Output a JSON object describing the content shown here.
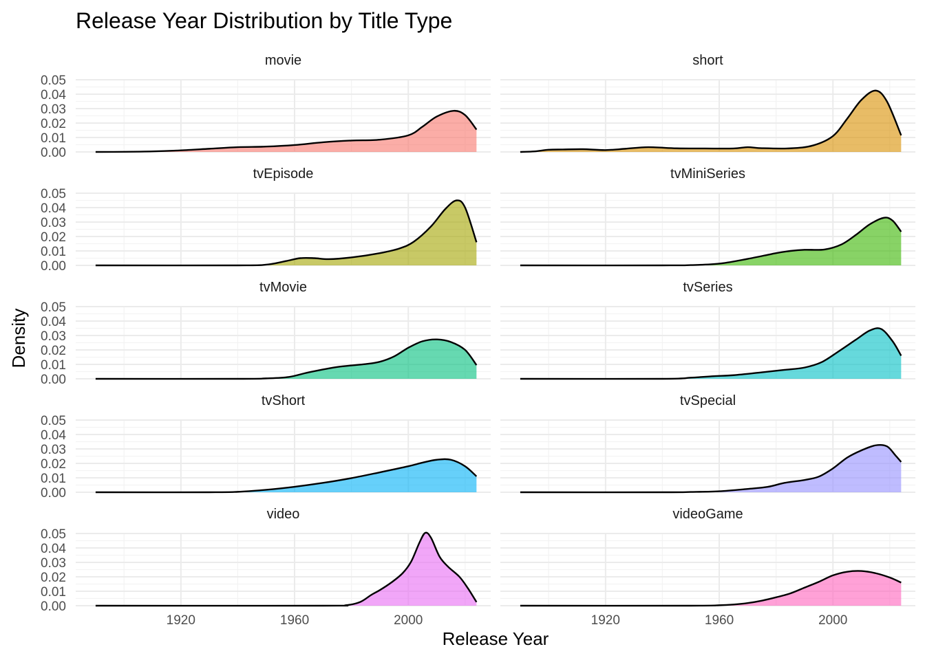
{
  "chart_data": {
    "type": "area",
    "title": "Release Year Distribution by Title Type",
    "xlabel": "Release Year",
    "ylabel": "Density",
    "xlim": [
      1883,
      2029
    ],
    "ylim": [
      0,
      0.05
    ],
    "x_ticks": [
      1920,
      1960,
      2000
    ],
    "y_ticks": [
      0.0,
      0.01,
      0.02,
      0.03,
      0.04,
      0.05
    ],
    "grid": true,
    "legend": "none",
    "facets": [
      {
        "name": "movie",
        "color": "#F8766D",
        "x": [
          1890,
          1900,
          1910,
          1920,
          1930,
          1940,
          1950,
          1960,
          1970,
          1980,
          1990,
          2000,
          2005,
          2010,
          2016,
          2020,
          2024
        ],
        "values": [
          0.0,
          0.0001,
          0.0004,
          0.0011,
          0.0022,
          0.0033,
          0.0037,
          0.0048,
          0.0067,
          0.0079,
          0.0085,
          0.0115,
          0.0175,
          0.0245,
          0.0285,
          0.0255,
          0.0155
        ]
      },
      {
        "name": "short",
        "color": "#D89000",
        "x": [
          1890,
          1895,
          1900,
          1905,
          1912,
          1920,
          1927,
          1935,
          1945,
          1955,
          1965,
          1970,
          1975,
          1985,
          1993,
          2000,
          2005,
          2010,
          2015,
          2019,
          2024
        ],
        "values": [
          0.0,
          0.0004,
          0.0015,
          0.0017,
          0.0019,
          0.0013,
          0.0022,
          0.0033,
          0.0025,
          0.0024,
          0.0024,
          0.0033,
          0.0026,
          0.0025,
          0.0045,
          0.011,
          0.023,
          0.036,
          0.0425,
          0.035,
          0.0115
        ]
      },
      {
        "name": "tvEpisode",
        "color": "#A3A500",
        "x": [
          1890,
          1940,
          1950,
          1957,
          1962,
          1967,
          1972,
          1980,
          1990,
          1997,
          2002,
          2008,
          2013,
          2017,
          2020,
          2024
        ],
        "values": [
          0.0,
          0.0,
          0.0005,
          0.003,
          0.005,
          0.005,
          0.0043,
          0.0055,
          0.0085,
          0.0118,
          0.0165,
          0.027,
          0.039,
          0.045,
          0.04,
          0.016
        ]
      },
      {
        "name": "tvMiniSeries",
        "color": "#39B600",
        "x": [
          1890,
          1940,
          1950,
          1960,
          1970,
          1980,
          1985,
          1990,
          1997,
          2003,
          2008,
          2013,
          2018,
          2021,
          2024
        ],
        "values": [
          0.0,
          0.0,
          0.0002,
          0.0012,
          0.0045,
          0.0085,
          0.01,
          0.0108,
          0.011,
          0.0145,
          0.021,
          0.0285,
          0.033,
          0.031,
          0.0233
        ]
      },
      {
        "name": "tvMovie",
        "color": "#00BF7D",
        "x": [
          1890,
          1940,
          1950,
          1958,
          1965,
          1975,
          1985,
          1990,
          1995,
          2000,
          2005,
          2010,
          2015,
          2020,
          2024
        ],
        "values": [
          0.0,
          0.0,
          0.0003,
          0.0013,
          0.0045,
          0.0082,
          0.0102,
          0.0118,
          0.0155,
          0.0215,
          0.026,
          0.0273,
          0.0255,
          0.02,
          0.0095
        ]
      },
      {
        "name": "tvSeries",
        "color": "#00BFC4",
        "x": [
          1890,
          1940,
          1950,
          1958,
          1965,
          1975,
          1983,
          1990,
          1996,
          2002,
          2008,
          2013,
          2017,
          2021,
          2024
        ],
        "values": [
          0.0,
          0.0,
          0.0008,
          0.0018,
          0.0025,
          0.0045,
          0.0062,
          0.0078,
          0.0115,
          0.019,
          0.027,
          0.0335,
          0.0345,
          0.026,
          0.016
        ]
      },
      {
        "name": "tvShort",
        "color": "#00B0F6",
        "x": [
          1890,
          1930,
          1940,
          1950,
          1960,
          1970,
          1980,
          1990,
          2000,
          2005,
          2010,
          2015,
          2020,
          2024
        ],
        "values": [
          0.0,
          0.0,
          0.0003,
          0.0017,
          0.0038,
          0.0065,
          0.0098,
          0.0138,
          0.018,
          0.0205,
          0.0225,
          0.0225,
          0.018,
          0.011
        ]
      },
      {
        "name": "tvSpecial",
        "color": "#9590FF",
        "x": [
          1890,
          1940,
          1950,
          1960,
          1970,
          1977,
          1983,
          1990,
          1995,
          2000,
          2005,
          2010,
          2015,
          2019,
          2022,
          2024
        ],
        "values": [
          0.0,
          0.0,
          0.0002,
          0.0007,
          0.0023,
          0.0037,
          0.0065,
          0.0085,
          0.0108,
          0.0165,
          0.024,
          0.029,
          0.0325,
          0.0318,
          0.0255,
          0.021
        ]
      },
      {
        "name": "video",
        "color": "#E76BF3",
        "x": [
          1890,
          1970,
          1978,
          1983,
          1987,
          1990,
          1994,
          1998,
          2001,
          2004,
          2006,
          2008,
          2011,
          2014,
          2018,
          2021,
          2024
        ],
        "values": [
          0.0,
          0.0,
          0.0003,
          0.0025,
          0.0075,
          0.0108,
          0.016,
          0.0225,
          0.0305,
          0.044,
          0.0505,
          0.047,
          0.034,
          0.027,
          0.02,
          0.012,
          0.0025
        ]
      },
      {
        "name": "videoGame",
        "color": "#FF62BC",
        "x": [
          1890,
          1950,
          1960,
          1965,
          1970,
          1975,
          1980,
          1985,
          1990,
          1995,
          2000,
          2005,
          2010,
          2015,
          2020,
          2024
        ],
        "values": [
          0.0,
          0.0,
          0.0003,
          0.0008,
          0.0018,
          0.0035,
          0.0058,
          0.0085,
          0.0125,
          0.0165,
          0.021,
          0.0235,
          0.024,
          0.0225,
          0.0195,
          0.016
        ]
      }
    ]
  }
}
